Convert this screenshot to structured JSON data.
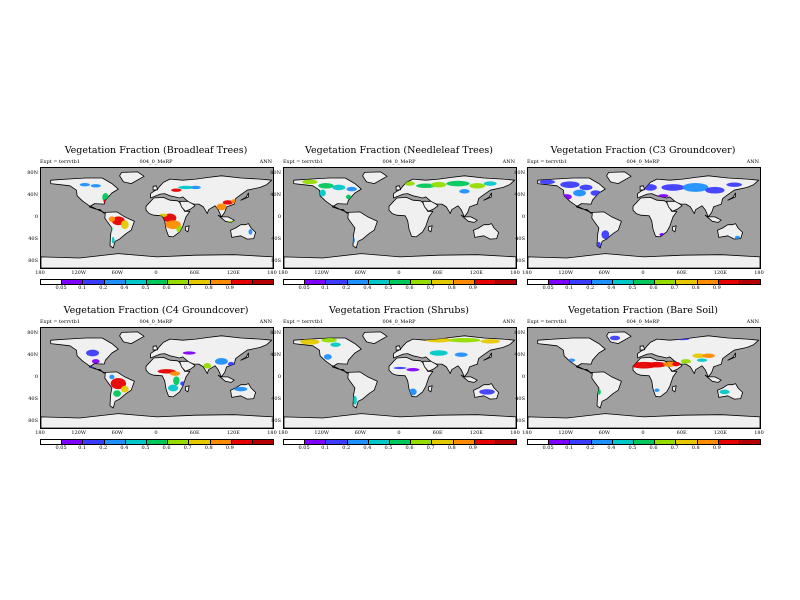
{
  "chart_data": [
    {
      "type": "heatmap",
      "title": "Vegetation Fraction (Broadleaf Trees)",
      "expt": "Expt = terrvtb1",
      "run": "004_0_MeRP",
      "period": "ANN",
      "colorbar_min_label": "0.05",
      "highlight": "broadleaf"
    },
    {
      "type": "heatmap",
      "title": "Vegetation Fraction (Needleleaf Trees)",
      "expt": "Expt = terrvtb1",
      "run": "004_0_MeRP",
      "period": "ANN",
      "colorbar_min_label": "0.05",
      "highlight": "needleleaf"
    },
    {
      "type": "heatmap",
      "title": "Vegetation Fraction (C3 Groundcover)",
      "expt": "Expt = terrvtb1",
      "run": "004_0_MeRP",
      "period": "ANN",
      "colorbar_min_label": "0.05",
      "highlight": "c3"
    },
    {
      "type": "heatmap",
      "title": "Vegetation Fraction (C4 Groundcover)",
      "expt": "Expt = terrvtb1",
      "run": "004_0_MeRP",
      "period": "ANN",
      "colorbar_min_label": "0.05",
      "highlight": "c4"
    },
    {
      "type": "heatmap",
      "title": "Vegetation Fraction (Shrubs)",
      "expt": "Expt = terrvtb1",
      "run": "004_0_MeRP",
      "period": "ANN",
      "colorbar_min_label": "0.05",
      "highlight": "shrubs"
    },
    {
      "type": "heatmap",
      "title": "Vegetation Fraction (Bare Soil)",
      "expt": "Expt = terrvtb1",
      "run": "004_0_MeRP",
      "period": "ANN",
      "colorbar_min_label": "0.05",
      "highlight": "bare"
    }
  ],
  "colorbar": {
    "labels": [
      "0.05",
      "0.1",
      "0.2",
      "0.4",
      "0.5",
      "0.6",
      "0.7",
      "0.8",
      "0.9"
    ],
    "colors": [
      "#ffffff",
      "#7f00ff",
      "#3c3cff",
      "#1e90ff",
      "#00c8c8",
      "#00c85a",
      "#96dc00",
      "#e6c800",
      "#ff8c00",
      "#e60000",
      "#b40000"
    ]
  },
  "lat_labels": [
    "80N",
    "40N",
    "0",
    "40S",
    "80S"
  ],
  "lon_labels": [
    "180",
    "120W",
    "60W",
    "0",
    "60E",
    "120E",
    "180"
  ],
  "colors": {
    "ocean": "#a0a0a0",
    "land_empty": "#f0f0f0",
    "outline": "#000000"
  }
}
